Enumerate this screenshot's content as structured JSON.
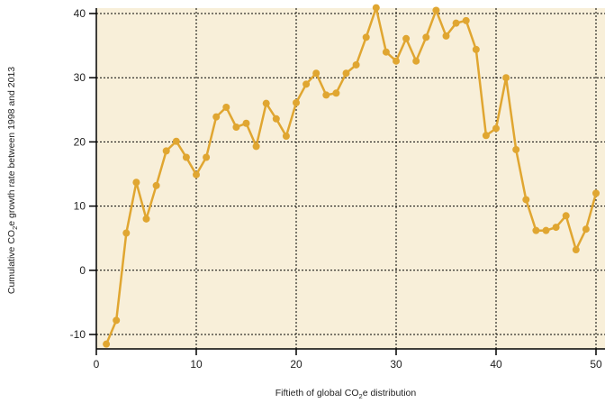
{
  "chart_data": {
    "type": "line",
    "xlabel": {
      "pre": "Fiftieth of global CO",
      "sub": "2",
      "post": "e distribution"
    },
    "ylabel": {
      "pre": "Cumulative CO",
      "sub": "2",
      "post": "e growth  rate between 1998 and 2013"
    },
    "xlim": [
      0,
      50
    ],
    "ylim": [
      -13,
      42
    ],
    "xticks": [
      0,
      10,
      20,
      30,
      40,
      50
    ],
    "yticks": [
      -10,
      0,
      10,
      20,
      30,
      40
    ],
    "grid": true,
    "colors": {
      "line": "#e0a631",
      "plot_background": "#f8efd9",
      "grid": "#000000"
    },
    "series": [
      {
        "x": [
          1,
          2,
          3,
          4,
          5,
          6,
          7,
          8,
          9,
          10,
          11,
          12,
          13,
          14,
          15,
          16,
          17,
          18,
          19,
          20,
          21,
          22,
          23,
          24,
          25,
          26,
          27,
          28,
          29,
          30,
          31,
          32,
          33,
          34,
          35,
          36,
          37,
          38,
          39,
          40,
          41,
          42,
          43,
          44,
          45,
          46,
          47,
          48,
          49,
          50
        ],
        "values": [
          -11.5,
          -7.8,
          5.8,
          13.7,
          8.0,
          13.2,
          18.6,
          20.1,
          17.6,
          14.9,
          17.6,
          23.9,
          25.4,
          22.3,
          22.9,
          19.3,
          26.0,
          23.6,
          20.9,
          26.1,
          29.0,
          30.7,
          27.3,
          27.6,
          30.7,
          32.0,
          36.3,
          40.9,
          34.0,
          32.6,
          36.1,
          32.6,
          36.3,
          40.5,
          36.5,
          38.5,
          38.9,
          34.4,
          21.0,
          22.1,
          30.0,
          18.8,
          11.0,
          6.2,
          6.2,
          6.7,
          8.5,
          3.2,
          6.4,
          12.0
        ]
      }
    ]
  }
}
